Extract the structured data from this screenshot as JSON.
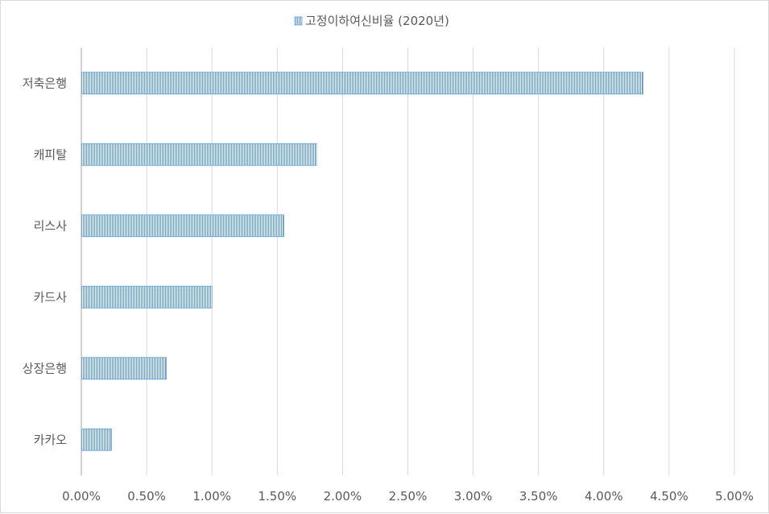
{
  "chart_data": {
    "type": "bar",
    "orientation": "horizontal",
    "categories": [
      "저축은행",
      "캐피탈",
      "리스사",
      "카드사",
      "상장은행",
      "카카오"
    ],
    "series": [
      {
        "name": "고정이하여신비율 (2020년)",
        "values": [
          4.3,
          1.8,
          1.55,
          1.0,
          0.65,
          0.23
        ]
      }
    ],
    "xlim": [
      0,
      5
    ],
    "x_ticks": [
      "0.00%",
      "0.50%",
      "1.00%",
      "1.50%",
      "2.00%",
      "2.50%",
      "3.00%",
      "3.50%",
      "4.00%",
      "4.50%",
      "5.00%"
    ],
    "grid": true,
    "legend_position": "top",
    "bar_color": "#5b9bd5"
  }
}
